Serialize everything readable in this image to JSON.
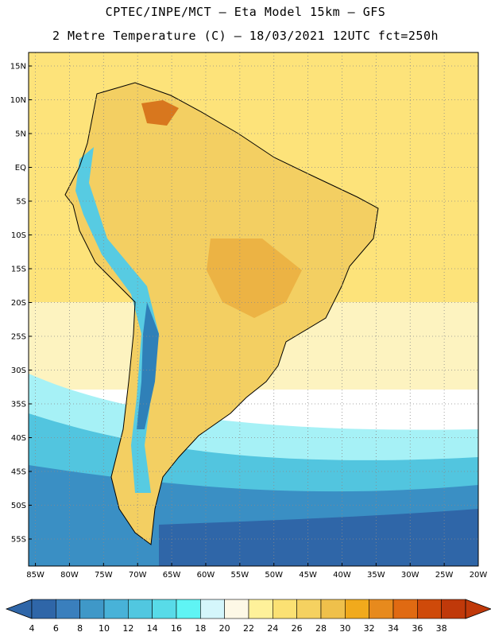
{
  "header": {
    "line1": "CPTEC/INPE/MCT –  Eta Model 15km – GFS",
    "line2": "2 Metre Temperature (C) – 18/03/2021 12UTC fct=250h"
  },
  "axes": {
    "lat_labels": [
      "15N",
      "10N",
      "5N",
      "EQ",
      "5S",
      "10S",
      "15S",
      "20S",
      "25S",
      "30S",
      "35S",
      "40S",
      "45S",
      "50S",
      "55S"
    ],
    "lon_labels": [
      "85W",
      "80W",
      "75W",
      "70W",
      "65W",
      "60W",
      "55W",
      "50W",
      "45W",
      "40W",
      "35W",
      "30W",
      "25W",
      "20W"
    ]
  },
  "colorbar": {
    "values": [
      "4",
      "6",
      "8",
      "10",
      "12",
      "14",
      "16",
      "18",
      "20",
      "22",
      "24",
      "26",
      "28",
      "30",
      "32",
      "34",
      "36",
      "38"
    ],
    "colors": [
      "#2f66a8",
      "#3a7fbd",
      "#3f98c8",
      "#48b2d8",
      "#51c7e0",
      "#58dbe8",
      "#5ff4f4",
      "#d4f6fb",
      "#fdf8e6",
      "#fef19a",
      "#fbe173",
      "#f5d160",
      "#efc04b",
      "#f1aa1c",
      "#e78a1d",
      "#e06a12",
      "#cf4a0a",
      "#c0390a"
    ]
  },
  "map": {
    "lon_range": [
      -86,
      -20
    ],
    "lat_range": [
      -59,
      17
    ],
    "region_colors": {
      "ocean_north": "#fde37a",
      "ocean_mid": "#fdf3c0",
      "ocean_cool": "#a6f1f6",
      "ocean_cold": "#52c5df",
      "ocean_far": "#3a8fc4",
      "ocean_deep": "#2f66a8",
      "land_warm": "#f3cf62",
      "land_hot": "#ecb344",
      "land_hottest": "#d8771e",
      "andes": "#57cbe2",
      "andes_peak": "#2f80b8",
      "border": "#000000"
    }
  }
}
